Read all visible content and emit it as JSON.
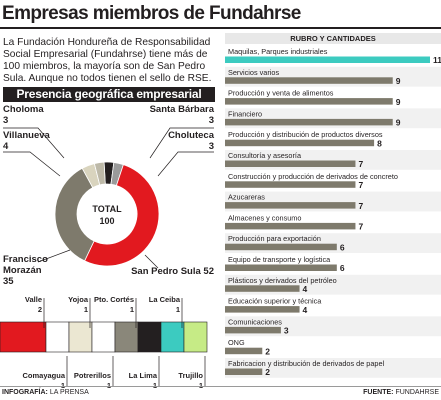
{
  "title": "Empresas miembros de Fundahrse",
  "intro": "La Fundación Hondureña de Responsabilidad Social Empresarial (Fundahrse) tiene más de 100 miembros, la mayoría son de San Pedro Sula. Aunque no todos tienen el sello de RSE.",
  "geo_title": "Presencia geográfica empresarial",
  "rubros_title": "RUBRO Y CANTIDADES",
  "total_label": "TOTAL",
  "total_value": "100",
  "footer_left_label": "INFOGRAFÍA:",
  "footer_left_value": "LA PRENSA",
  "footer_right_label": "FUENTE:",
  "footer_right_value": "FUNDAHRSE",
  "chart_data": [
    {
      "type": "pie",
      "title": "Presencia geográfica empresarial",
      "categories": [
        "San Pedro Sula",
        "Francisco Morazán",
        "Villanueva",
        "Choloma",
        "Santa Bárbara",
        "Choluteca"
      ],
      "values": [
        52,
        35,
        4,
        3,
        3,
        3
      ],
      "colors": [
        "#e2191f",
        "#7e7a6c",
        "#d9d4be",
        "#bdb9a8",
        "#231f20",
        "#9a9a9a"
      ]
    },
    {
      "type": "bar",
      "categories": [
        "Valle",
        "Comayagua",
        "Yojoa",
        "Potrerillos",
        "Pto. Cortés",
        "La Lima",
        "La Ceiba",
        "Trujillo"
      ],
      "values": [
        2,
        1,
        1,
        1,
        1,
        1,
        1,
        1
      ],
      "colors": [
        "#e2191f",
        "#ffffff",
        "#ebe7d2",
        "#ffffff",
        "#8a877a",
        "#231f20",
        "#3ccbc0",
        "#c6eb86"
      ]
    },
    {
      "type": "bar",
      "title": "RUBRO Y CANTIDADES",
      "categories": [
        "Maquilas, Parques industriales",
        "Servicios varios",
        "Producción y venta de alimentos",
        "Financiero",
        "Producción y distribución de productos diversos",
        "Consultoría y asesoría",
        "Construcción y producción de derivados de concreto",
        "Azucareras",
        "Almacenes y consumo",
        "Producción para exportación",
        "Equipo de transporte y logística",
        "Plásticos y derivados del petróleo",
        "Educación superior y técnica",
        "Comunicaciones",
        "ONG",
        "Fabricacion y distribución de derivados de papel"
      ],
      "values": [
        11,
        9,
        9,
        9,
        8,
        7,
        7,
        7,
        7,
        6,
        6,
        4,
        4,
        3,
        2,
        2
      ]
    }
  ]
}
